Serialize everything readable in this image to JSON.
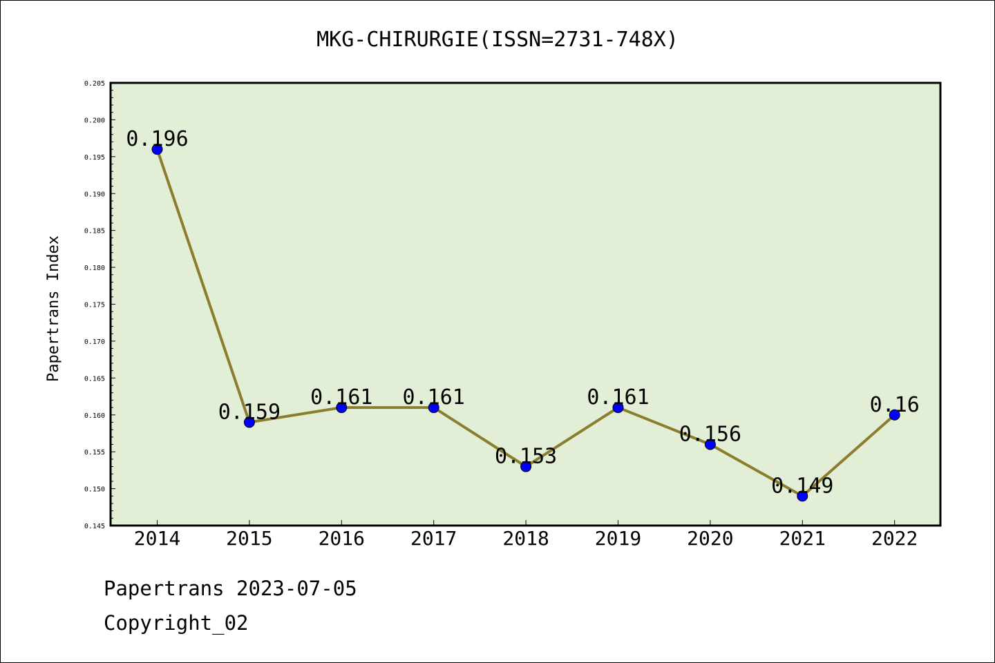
{
  "chart_data": {
    "type": "line",
    "title": "MKG-CHIRURGIE(ISSN=2731-748X)",
    "ylabel": "Papertrans Index",
    "xlabel": "",
    "categories": [
      "2014",
      "2015",
      "2016",
      "2017",
      "2018",
      "2019",
      "2020",
      "2021",
      "2022"
    ],
    "series": [
      {
        "values": [
          0.196,
          0.159,
          0.161,
          0.161,
          0.153,
          0.161,
          0.156,
          0.149,
          0.16
        ],
        "labels": [
          "0.196",
          "0.159",
          "0.161",
          "0.161",
          "0.153",
          "0.161",
          "0.156",
          "0.149",
          "0.16"
        ],
        "line_color": "#8b7d2e",
        "marker_color": "#0000ff"
      }
    ],
    "ylim": [
      0.145,
      0.205
    ],
    "yticks": [
      "0.145",
      "0.150",
      "0.155",
      "0.160",
      "0.165",
      "0.170",
      "0.175",
      "0.180",
      "0.185",
      "0.190",
      "0.195",
      "0.200",
      "0.205"
    ],
    "plot_background": "#e2efd6",
    "grid": false,
    "legend": "none"
  },
  "footer": {
    "source": "Papertrans 2023-07-05",
    "copyright": "Copyright_02"
  }
}
